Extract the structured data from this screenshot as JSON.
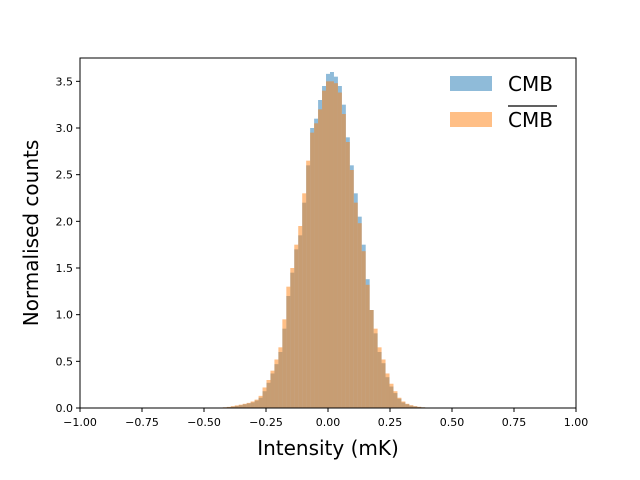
{
  "chart_data": {
    "type": "bar",
    "xlabel": "Intensity (mK)",
    "ylabel": "Normalised counts",
    "xlim": [
      -1.0,
      1.0
    ],
    "ylim": [
      0,
      3.75
    ],
    "xticks": [
      "−1.00",
      "−0.75",
      "−0.50",
      "−0.25",
      "0.00",
      "0.25",
      "0.50",
      "0.75",
      "1.00"
    ],
    "yticks": [
      "0.0",
      "0.5",
      "1.0",
      "1.5",
      "2.0",
      "2.5",
      "3.0",
      "3.5"
    ],
    "grid": false,
    "legend": "top-right",
    "bin_width": 0.016,
    "series": [
      {
        "name": "CMB",
        "color": "#1f77b4",
        "opacity": 0.5,
        "bins": [
          [
            -0.44,
            0.003
          ],
          [
            -0.424,
            0.006
          ],
          [
            -0.408,
            0.01
          ],
          [
            -0.392,
            0.015
          ],
          [
            -0.376,
            0.022
          ],
          [
            -0.36,
            0.03
          ],
          [
            -0.344,
            0.04
          ],
          [
            -0.328,
            0.05
          ],
          [
            -0.312,
            0.06
          ],
          [
            -0.296,
            0.08
          ],
          [
            -0.28,
            0.11
          ],
          [
            -0.264,
            0.18
          ],
          [
            -0.248,
            0.27
          ],
          [
            -0.232,
            0.37
          ],
          [
            -0.216,
            0.47
          ],
          [
            -0.2,
            0.6
          ],
          [
            -0.184,
            0.85
          ],
          [
            -0.168,
            1.2
          ],
          [
            -0.152,
            1.45
          ],
          [
            -0.136,
            1.7
          ],
          [
            -0.12,
            1.85
          ],
          [
            -0.104,
            2.2
          ],
          [
            -0.088,
            2.6
          ],
          [
            -0.072,
            3.0
          ],
          [
            -0.056,
            3.1
          ],
          [
            -0.04,
            3.3
          ],
          [
            -0.024,
            3.45
          ],
          [
            -0.008,
            3.58
          ],
          [
            0.008,
            3.6
          ],
          [
            0.024,
            3.55
          ],
          [
            0.04,
            3.45
          ],
          [
            0.056,
            3.25
          ],
          [
            0.072,
            2.9
          ],
          [
            0.088,
            2.6
          ],
          [
            0.104,
            2.3
          ],
          [
            0.12,
            2.05
          ],
          [
            0.136,
            1.75
          ],
          [
            0.152,
            1.38
          ],
          [
            0.168,
            1.05
          ],
          [
            0.184,
            0.8
          ],
          [
            0.2,
            0.6
          ],
          [
            0.216,
            0.48
          ],
          [
            0.232,
            0.33
          ],
          [
            0.248,
            0.23
          ],
          [
            0.264,
            0.16
          ],
          [
            0.28,
            0.1
          ],
          [
            0.296,
            0.06
          ],
          [
            0.312,
            0.04
          ],
          [
            0.328,
            0.025
          ],
          [
            0.344,
            0.017
          ],
          [
            0.36,
            0.011
          ],
          [
            0.376,
            0.007
          ],
          [
            0.392,
            0.004
          ],
          [
            0.408,
            0.002
          ]
        ]
      },
      {
        "name": "CMB",
        "overline": true,
        "color": "#ff7f0e",
        "opacity": 0.5,
        "bins": [
          [
            -0.44,
            0.004
          ],
          [
            -0.424,
            0.008
          ],
          [
            -0.408,
            0.012
          ],
          [
            -0.392,
            0.02
          ],
          [
            -0.376,
            0.028
          ],
          [
            -0.36,
            0.036
          ],
          [
            -0.344,
            0.045
          ],
          [
            -0.328,
            0.055
          ],
          [
            -0.312,
            0.07
          ],
          [
            -0.296,
            0.09
          ],
          [
            -0.28,
            0.13
          ],
          [
            -0.264,
            0.22
          ],
          [
            -0.248,
            0.3
          ],
          [
            -0.232,
            0.4
          ],
          [
            -0.216,
            0.52
          ],
          [
            -0.2,
            0.65
          ],
          [
            -0.184,
            0.95
          ],
          [
            -0.168,
            1.3
          ],
          [
            -0.152,
            1.5
          ],
          [
            -0.136,
            1.75
          ],
          [
            -0.12,
            1.95
          ],
          [
            -0.104,
            2.3
          ],
          [
            -0.088,
            2.65
          ],
          [
            -0.072,
            2.95
          ],
          [
            -0.056,
            3.05
          ],
          [
            -0.04,
            3.2
          ],
          [
            -0.024,
            3.4
          ],
          [
            -0.008,
            3.5
          ],
          [
            0.008,
            3.5
          ],
          [
            0.024,
            3.48
          ],
          [
            0.04,
            3.38
          ],
          [
            0.056,
            3.15
          ],
          [
            0.072,
            2.85
          ],
          [
            0.088,
            2.55
          ],
          [
            0.104,
            2.2
          ],
          [
            0.12,
            1.98
          ],
          [
            0.136,
            1.68
          ],
          [
            0.152,
            1.32
          ],
          [
            0.168,
            1.05
          ],
          [
            0.184,
            0.85
          ],
          [
            0.2,
            0.65
          ],
          [
            0.216,
            0.52
          ],
          [
            0.232,
            0.37
          ],
          [
            0.248,
            0.26
          ],
          [
            0.264,
            0.18
          ],
          [
            0.28,
            0.11
          ],
          [
            0.296,
            0.07
          ],
          [
            0.312,
            0.045
          ],
          [
            0.328,
            0.03
          ],
          [
            0.344,
            0.02
          ],
          [
            0.36,
            0.013
          ],
          [
            0.376,
            0.008
          ],
          [
            0.392,
            0.005
          ],
          [
            0.408,
            0.003
          ]
        ]
      }
    ]
  }
}
